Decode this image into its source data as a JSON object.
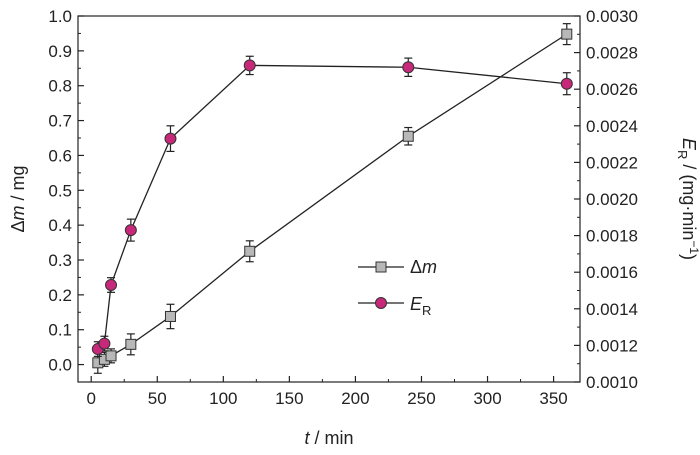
{
  "chart_data": {
    "type": "line",
    "x": {
      "label_var": "t",
      "label_rest": " / min",
      "range": [
        -10,
        370
      ],
      "ticks": [
        0,
        50,
        100,
        150,
        200,
        250,
        300,
        350
      ],
      "tick_labels": [
        "0",
        "50",
        "100",
        "150",
        "200",
        "250",
        "300",
        "350"
      ]
    },
    "y_left": {
      "label_sym": "Δ",
      "label_var": "m",
      "label_rest": " / mg",
      "range": [
        -0.05,
        1.0
      ],
      "ticks": [
        0.0,
        0.1,
        0.2,
        0.3,
        0.4,
        0.5,
        0.6,
        0.7,
        0.8,
        0.9,
        1.0
      ],
      "tick_labels": [
        "0.0",
        "0.1",
        "0.2",
        "0.3",
        "0.4",
        "0.5",
        "0.6",
        "0.7",
        "0.8",
        "0.9",
        "1.0"
      ]
    },
    "y_right": {
      "label_var": "E",
      "label_sub": "R",
      "label_rest": " / (mg·min",
      "label_sup": "−1",
      "label_end": ")",
      "range": [
        0.001,
        0.003
      ],
      "ticks": [
        0.001,
        0.0012,
        0.0014,
        0.0016,
        0.0018,
        0.002,
        0.0022,
        0.0024,
        0.0026,
        0.0028,
        0.003
      ],
      "tick_labels": [
        "0.0010",
        "0.0012",
        "0.0014",
        "0.0016",
        "0.0018",
        "0.0020",
        "0.0022",
        "0.0024",
        "0.0026",
        "0.0028",
        "0.0030"
      ]
    },
    "series": [
      {
        "name_sym": "Δ",
        "name_var": "m",
        "axis": "left",
        "marker": "square",
        "color": "#b8b8b8",
        "x": [
          5,
          10,
          15,
          30,
          60,
          120,
          240,
          360
        ],
        "y": [
          0.005,
          0.015,
          0.025,
          0.058,
          0.138,
          0.325,
          0.655,
          0.948
        ],
        "err": [
          0.03,
          0.02,
          0.02,
          0.03,
          0.035,
          0.03,
          0.025,
          0.03
        ]
      },
      {
        "name_var": "E",
        "name_sub": "R",
        "axis": "right",
        "marker": "circle",
        "color": "#c8287a",
        "x": [
          5,
          10,
          15,
          30,
          60,
          120,
          240,
          360
        ],
        "y": [
          0.00118,
          0.00121,
          0.00153,
          0.00183,
          0.00233,
          0.00273,
          0.00272,
          0.00263
        ],
        "err": [
          4e-05,
          4e-05,
          4e-05,
          6e-05,
          7e-05,
          5e-05,
          5e-05,
          6e-05
        ]
      }
    ],
    "legend_position": "center-right",
    "grid": false
  }
}
